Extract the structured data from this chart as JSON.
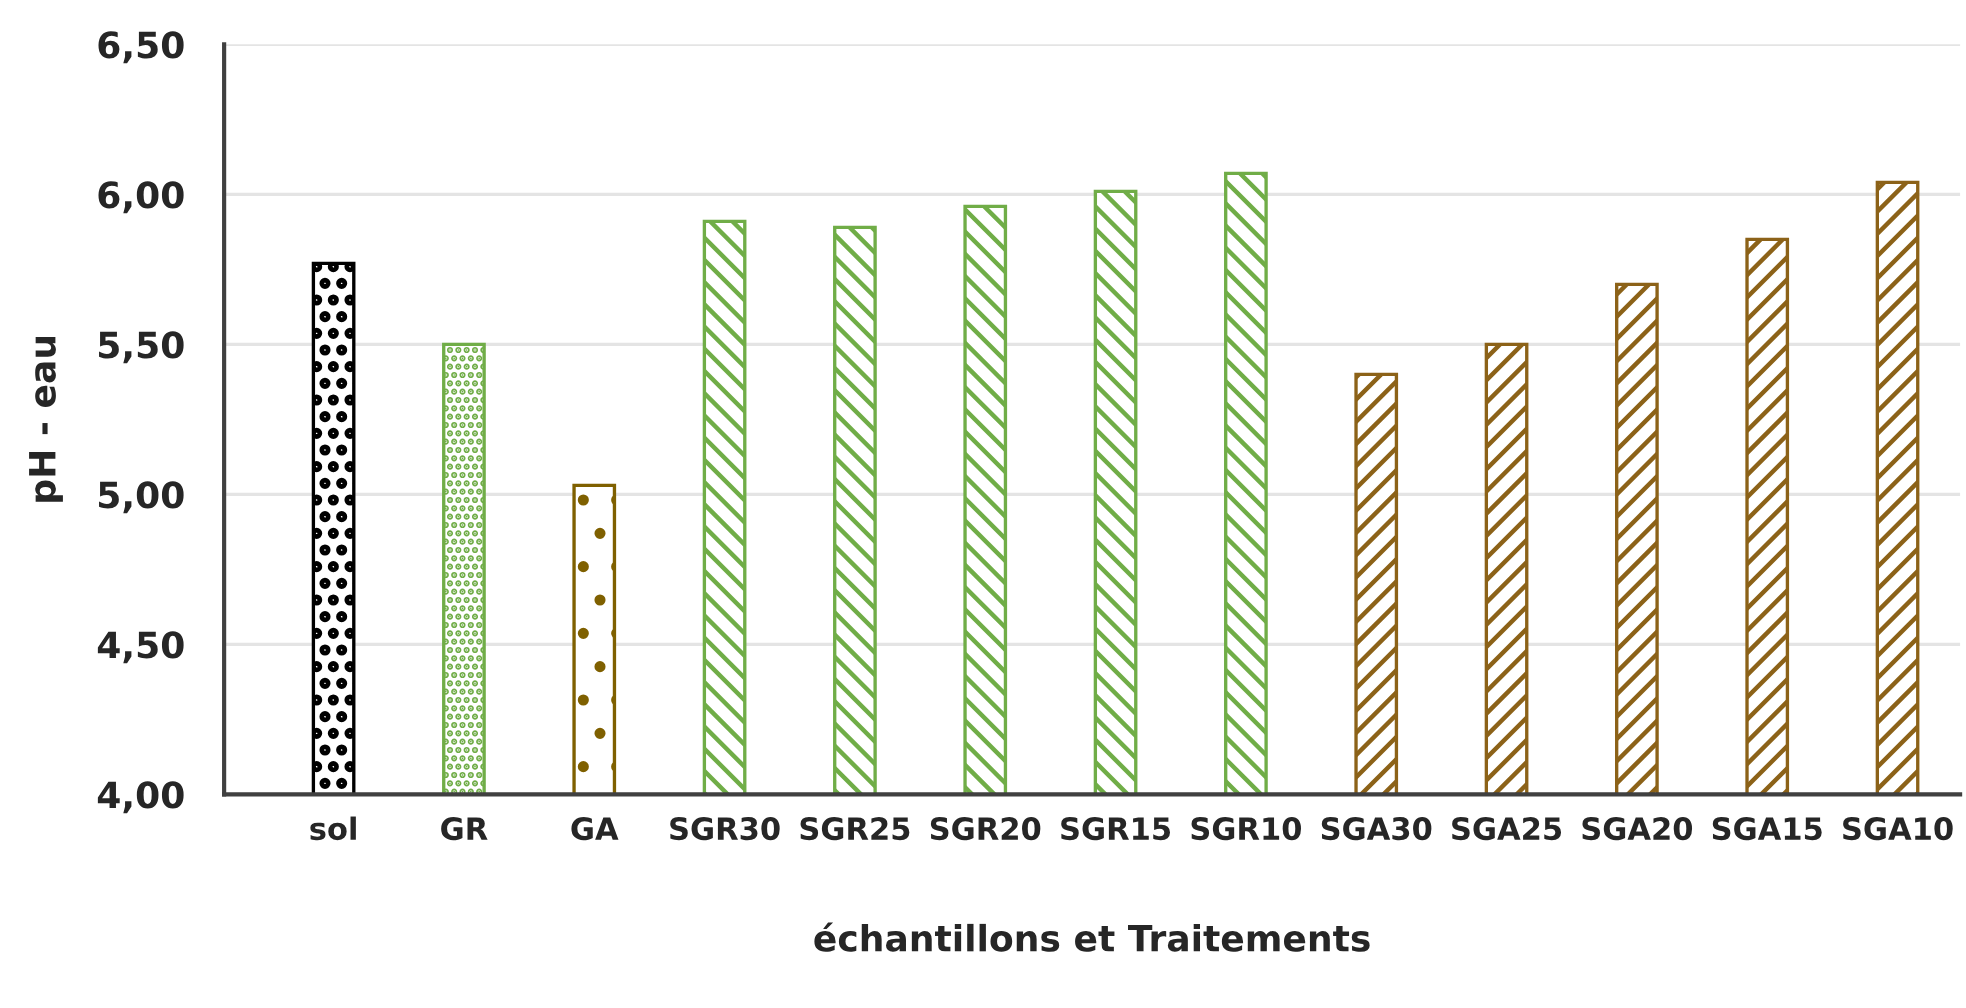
{
  "chart_data": {
    "type": "bar",
    "xlabel": "échantillons et Traitements",
    "ylabel": "pH - eau",
    "categories": [
      "sol",
      "GR",
      "GA",
      "SGR30",
      "SGR25",
      "SGR20",
      "SGR15",
      "SGR10",
      "SGA30",
      "SGA25",
      "SGA20",
      "SGA15",
      "SGA10"
    ],
    "values": [
      5.77,
      5.5,
      5.03,
      5.91,
      5.89,
      5.96,
      6.01,
      6.07,
      5.4,
      5.5,
      5.7,
      5.85,
      6.04
    ],
    "colors": [
      "#000000",
      "#70ad47",
      "#7f6000",
      "#70ad47",
      "#70ad47",
      "#70ad47",
      "#70ad47",
      "#70ad47",
      "#8c6218",
      "#8c6218",
      "#8c6218",
      "#8c6218",
      "#8c6218"
    ],
    "ylim": [
      4,
      6.5
    ],
    "yticks": [
      {
        "value": 4,
        "label": "4,00"
      },
      {
        "value": 4.5,
        "label": "4,50"
      },
      {
        "value": 5,
        "label": "5,00"
      },
      {
        "value": 5.5,
        "label": "5,50"
      },
      {
        "value": 6,
        "label": "6,00"
      },
      {
        "value": 6.5,
        "label": "6,50"
      }
    ],
    "grid": "y"
  }
}
